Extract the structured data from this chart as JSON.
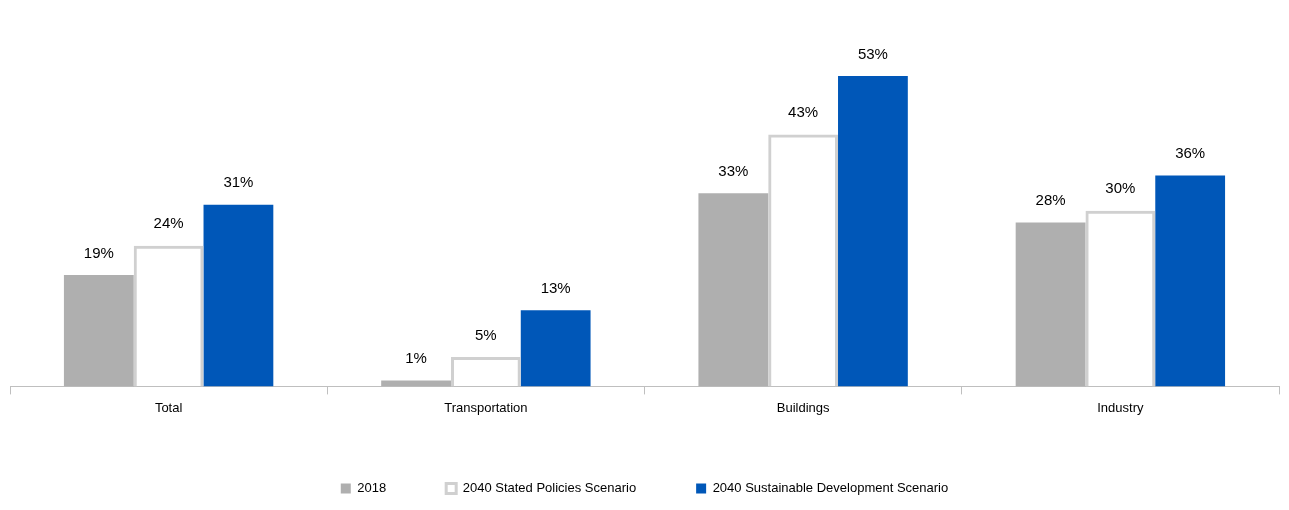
{
  "chart_data": {
    "type": "bar",
    "categories": [
      "Total",
      "Transportation",
      "Buildings",
      "Industry"
    ],
    "series": [
      {
        "name": "2018",
        "color": "#afafaf",
        "values": [
          19,
          1,
          33,
          28
        ],
        "value_labels": [
          "19%",
          "1%",
          "33%",
          "28%"
        ]
      },
      {
        "name": "2040 Stated Policies Scenario",
        "color": "#d0d0d0",
        "values": [
          24,
          5,
          43,
          30
        ],
        "value_labels": [
          "24%",
          "5%",
          "43%",
          "30%"
        ]
      },
      {
        "name": "2040 Sustainable Development Scenario",
        "color": "#0057b8",
        "values": [
          31,
          13,
          53,
          36
        ],
        "value_labels": [
          "31%",
          "13%",
          "53%",
          "36%"
        ]
      }
    ],
    "legend": "bottom",
    "grid": false
  }
}
